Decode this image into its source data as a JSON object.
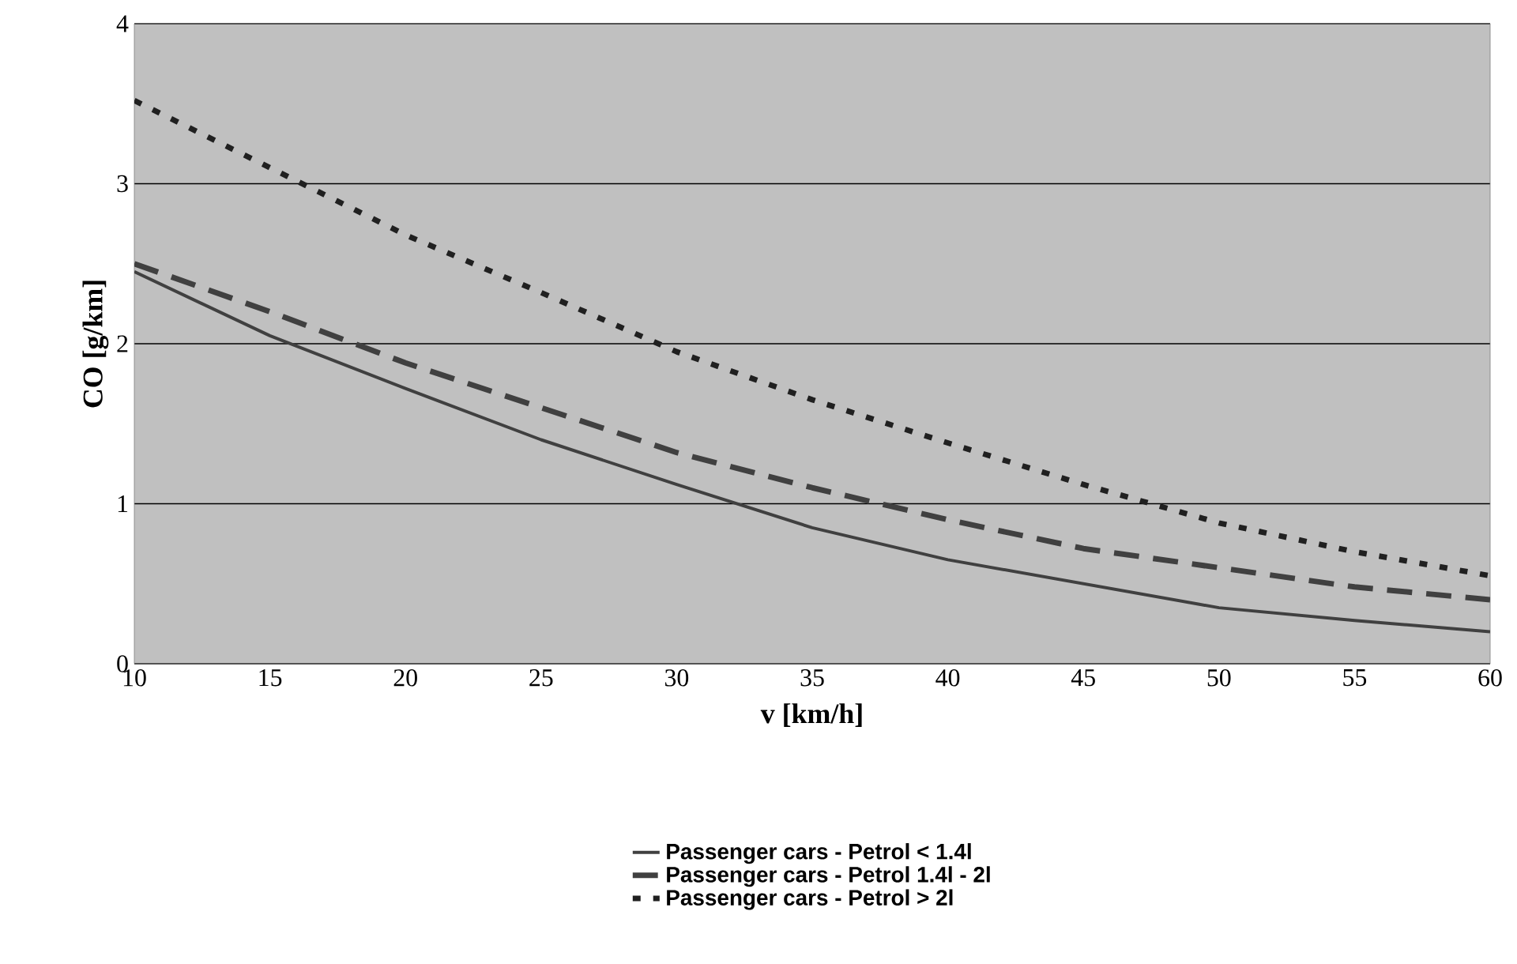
{
  "chart_data": {
    "type": "line",
    "xlabel": "v [km/h]",
    "ylabel": "CO [g/km]",
    "x": [
      10,
      15,
      20,
      25,
      30,
      35,
      40,
      45,
      50,
      55,
      60
    ],
    "series": [
      {
        "name": "Passenger cars - Petrol < 1.4l",
        "color": "#404040",
        "line_style": "solid",
        "values": [
          2.45,
          2.05,
          1.72,
          1.4,
          1.12,
          0.85,
          0.65,
          0.5,
          0.35,
          0.27,
          0.2
        ]
      },
      {
        "name": "Passenger cars - Petrol 1.4l - 2l",
        "color": "#404040",
        "line_style": "dashed",
        "values": [
          2.5,
          2.2,
          1.88,
          1.6,
          1.32,
          1.1,
          0.9,
          0.72,
          0.6,
          0.48,
          0.4
        ]
      },
      {
        "name": "Passenger cars - Petrol > 2l",
        "color": "#202020",
        "line_style": "dotted",
        "values": [
          3.52,
          3.1,
          2.68,
          2.32,
          1.95,
          1.65,
          1.38,
          1.12,
          0.88,
          0.7,
          0.55
        ]
      }
    ],
    "xlim": [
      10,
      60
    ],
    "ylim": [
      0,
      4
    ],
    "xticks": [
      10,
      15,
      20,
      25,
      30,
      35,
      40,
      45,
      50,
      55,
      60
    ],
    "yticks": [
      0,
      1,
      2,
      3,
      4
    ],
    "grid": "y",
    "legend": "bottom",
    "marker": "none"
  }
}
